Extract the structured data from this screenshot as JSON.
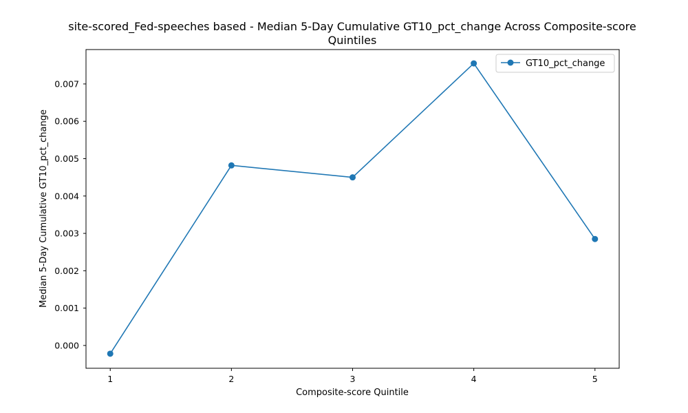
{
  "chart_data": {
    "type": "line",
    "title": "site-scored_Fed-speeches based - Median 5-Day Cumulative GT10_pct_change Across Composite-score Quintiles",
    "title_lines": [
      "site-scored_Fed-speeches based - Median 5-Day Cumulative GT10_pct_change Across Composite-score",
      "Quintiles"
    ],
    "xlabel": "Composite-score Quintile",
    "ylabel": "Median 5-Day Cumulative GT10_pct_change",
    "x": [
      1,
      2,
      3,
      4,
      5
    ],
    "x_tick_labels": [
      "1",
      "2",
      "3",
      "4",
      "5"
    ],
    "xlim": [
      0.8,
      5.2
    ],
    "y_ticks": [
      0.0,
      0.001,
      0.002,
      0.003,
      0.004,
      0.005,
      0.006,
      0.007
    ],
    "y_tick_labels": [
      "0.000",
      "0.001",
      "0.002",
      "0.003",
      "0.004",
      "0.005",
      "0.006",
      "0.007"
    ],
    "ylim": [
      -0.00061,
      0.00792
    ],
    "grid": false,
    "legend_position": "top-right",
    "series": [
      {
        "name": "GT10_pct_change",
        "color": "#1f77b4",
        "marker": "circle",
        "values": [
          -0.00022,
          0.00482,
          0.0045,
          0.00755,
          0.00285
        ]
      }
    ]
  }
}
